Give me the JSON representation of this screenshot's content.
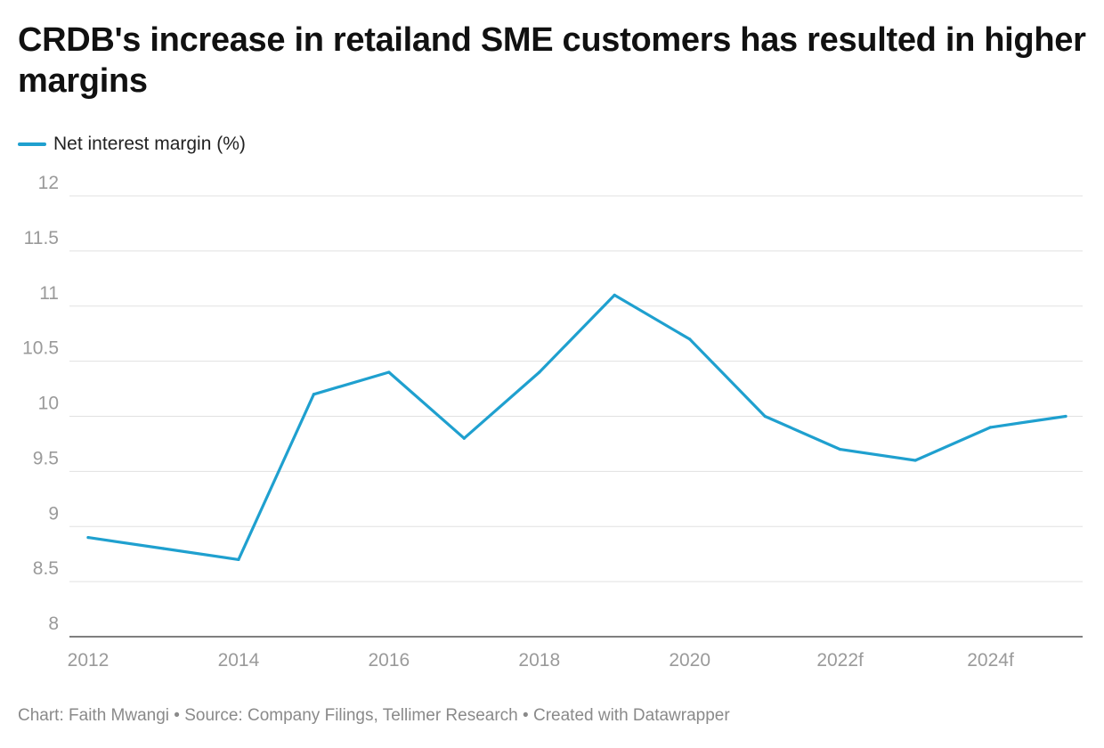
{
  "title": "CRDB's increase in retailand SME customers has resulted in higher margins",
  "legend": {
    "label": "Net interest margin (%)"
  },
  "footer": {
    "chart_by": "Chart: Faith Mwangi",
    "source": "Source: Company Filings, Tellimer Research",
    "created_with": "Created with Datawrapper",
    "separator": " • "
  },
  "colors": {
    "series": "#1fa0cf",
    "grid": "#e1e1e1",
    "axis_text": "#9a9a9a"
  },
  "chart_data": {
    "type": "line",
    "title": "CRDB's increase in retailand SME customers has resulted in higher margins",
    "xlabel": "",
    "ylabel": "",
    "categories": [
      "2012",
      "2013",
      "2014",
      "2015",
      "2016",
      "2017",
      "2018",
      "2019",
      "2020",
      "2021",
      "2022f",
      "2023f",
      "2024f",
      "2025f"
    ],
    "x_tick_labels": [
      "2012",
      "2014",
      "2016",
      "2018",
      "2020",
      "2022f",
      "2024f"
    ],
    "y_ticks": [
      "8",
      "8.5",
      "9",
      "9.5",
      "10",
      "10.5",
      "11",
      "11.5",
      "12"
    ],
    "ylim": [
      8,
      12
    ],
    "grid": true,
    "legend_position": "top-left",
    "series": [
      {
        "name": "Net interest margin (%)",
        "values": [
          8.9,
          8.8,
          8.7,
          10.2,
          10.4,
          9.8,
          10.4,
          11.1,
          10.7,
          10.0,
          9.7,
          9.6,
          9.9,
          10.0
        ]
      }
    ]
  }
}
